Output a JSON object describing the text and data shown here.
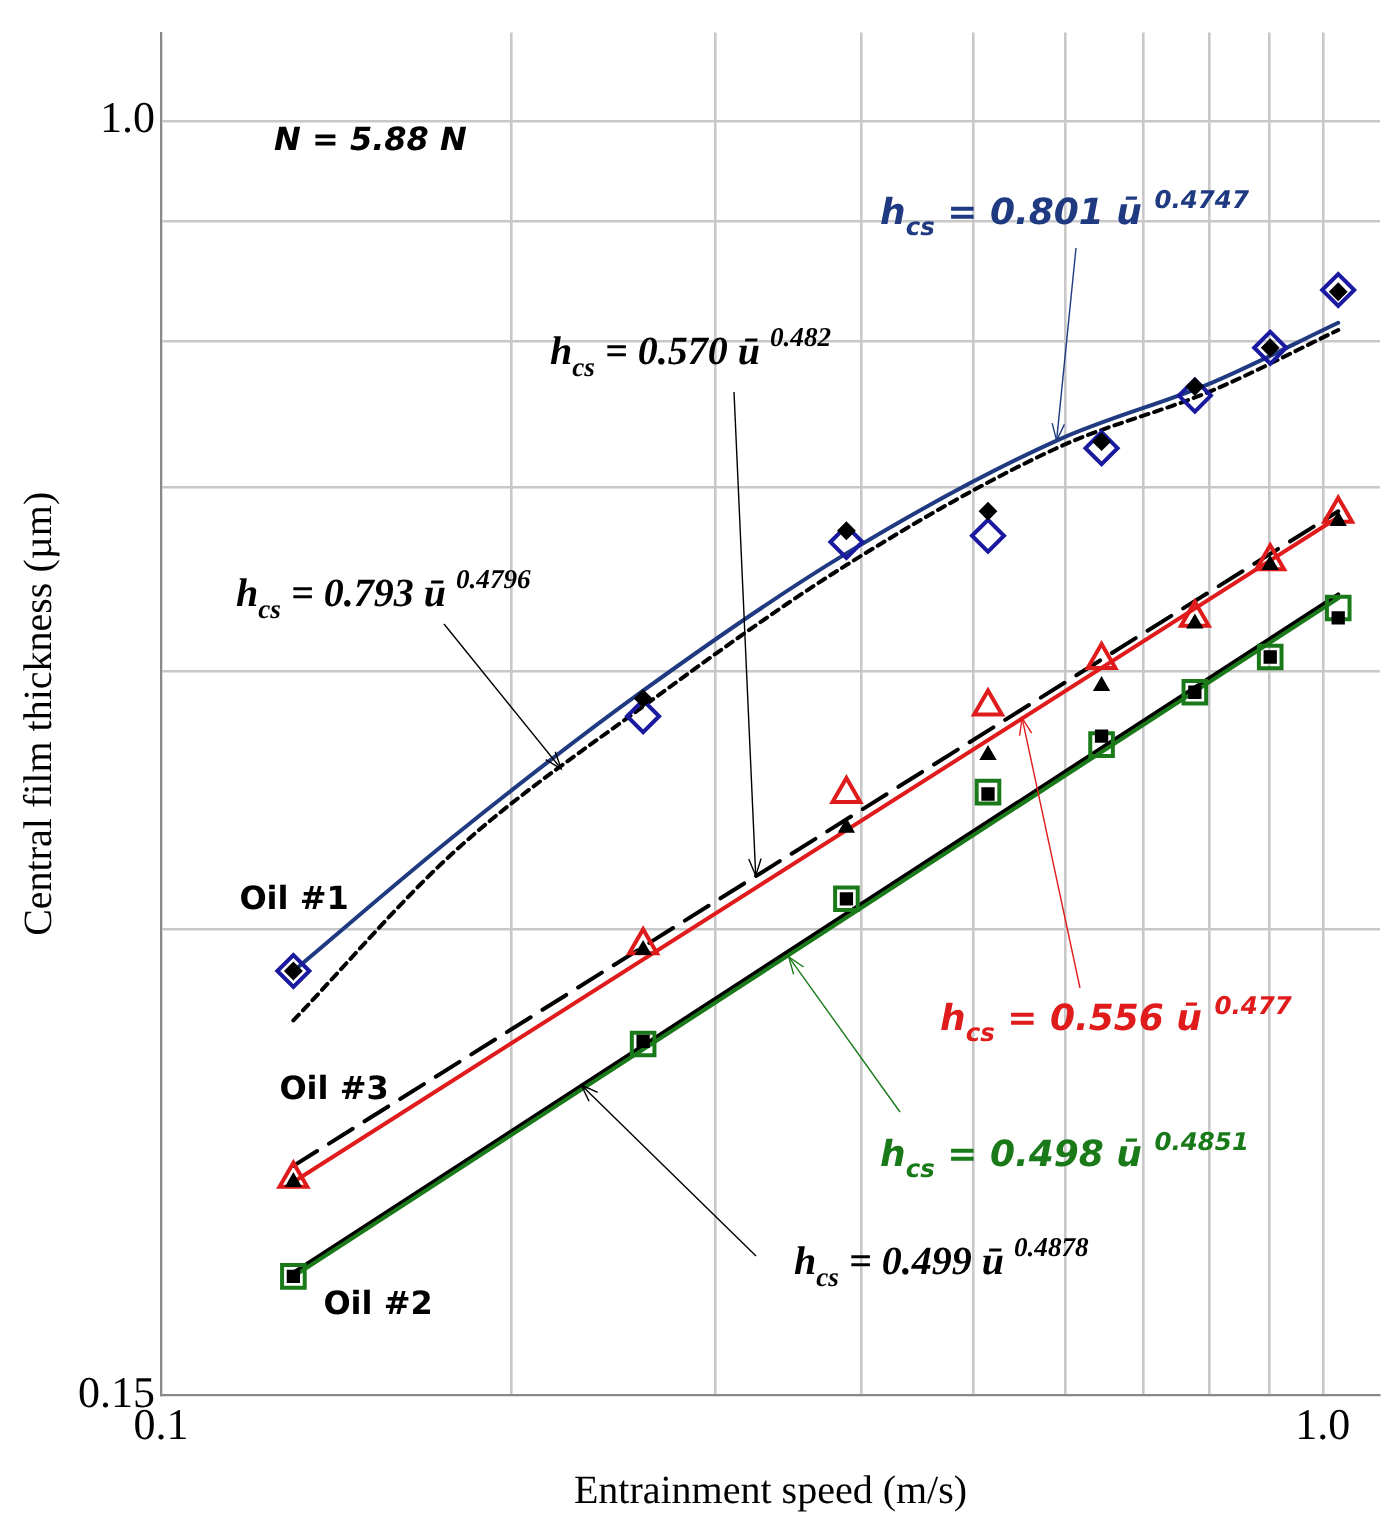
{
  "chart_data": {
    "type": "scatter",
    "xlabel": "Entrainment speed (m/s)",
    "ylabel": "Central film thickness (µm)",
    "log": "xy",
    "grid": true,
    "legend": false,
    "xlim": [
      0.1,
      1.12
    ],
    "xticks": [
      0.1,
      {
        "value": 0.2,
        "label": null
      },
      {
        "value": 0.3,
        "label": null
      },
      {
        "value": 0.4,
        "label": null
      },
      {
        "value": 0.5,
        "label": null
      },
      {
        "value": 0.6,
        "label": null
      },
      {
        "value": 0.7,
        "label": null
      },
      {
        "value": 0.8,
        "label": null
      },
      {
        "value": 0.9,
        "label": null
      },
      {
        "value": 1,
        "label": "1.0"
      }
    ],
    "ylim": [
      0.15,
      1.14
    ],
    "yticks": [
      0.15,
      {
        "value": 0.3,
        "label": null
      },
      {
        "value": 0.44,
        "label": null
      },
      {
        "value": 0.58,
        "label": null
      },
      {
        "value": 0.72,
        "label": null
      },
      {
        "value": 0.86,
        "label": null
      },
      {
        "value": 1,
        "label": "1.0"
      }
    ],
    "x": [
      0.13,
      0.26,
      0.389,
      0.515,
      0.645,
      0.776,
      0.901,
      1.031
    ],
    "series": [
      {
        "name": "Oil #1",
        "color": "#1a1aa0",
        "marker": "diamond",
        "values": [
          0.282,
          0.412,
          0.534,
          0.539,
          0.614,
          0.664,
          0.713,
          0.777
        ]
      },
      {
        "color": "#000000",
        "marker": "diamond",
        "values": [
          0.282,
          0.423,
          0.543,
          0.559,
          0.62,
          0.673,
          0.713,
          0.775
        ]
      },
      {
        "name": "Oil #3",
        "color": "#e01b1b",
        "marker": "triangle",
        "values": [
          0.207,
          0.293,
          0.367,
          0.418,
          0.448,
          0.477,
          0.519,
          0.557
        ]
      },
      {
        "color": "#000000",
        "marker": "triangle",
        "values": [
          0.206,
          0.291,
          0.349,
          0.389,
          0.431,
          0.473,
          0.516,
          0.551
        ]
      },
      {
        "name": "Oil #2",
        "color": "#1a7a1a",
        "marker": "square",
        "values": [
          0.179,
          0.253,
          0.314,
          0.368,
          0.395,
          0.427,
          0.45,
          0.484
        ]
      },
      {
        "color": "#000000",
        "marker": "square",
        "values": [
          0.179,
          0.254,
          0.314,
          0.367,
          0.4,
          0.427,
          0.45,
          0.477
        ]
      },
      {
        "type": "line",
        "color": "#1f3a80",
        "marker": "none",
        "line_style": "solid",
        "x": [
          0.13,
          0.179,
          0.26,
          0.389,
          0.59,
          0.803,
          1.031
        ],
        "values": [
          0.282,
          0.345,
          0.428,
          0.525,
          0.621,
          0.677,
          0.74
        ]
      },
      {
        "type": "line",
        "color": "#000000",
        "marker": "none",
        "line_style": "dotted",
        "x": [
          0.13,
          0.179,
          0.26,
          0.389,
          0.59,
          0.803,
          1.031
        ],
        "values": [
          0.262,
          0.337,
          0.418,
          0.516,
          0.614,
          0.669,
          0.732
        ]
      },
      {
        "type": "line",
        "color": "#e01b1b",
        "marker": "none",
        "line_style": "solid",
        "x": [
          0.13,
          1.031
        ],
        "values": [
          0.206,
          0.554
        ]
      },
      {
        "type": "line",
        "color": "#000000",
        "marker": "none",
        "line_style": "dashed",
        "x": [
          0.13,
          1.031
        ],
        "values": [
          0.211,
          0.559
        ]
      },
      {
        "type": "line",
        "color": "#1a7a1a",
        "marker": "none",
        "line_style": "solid",
        "x": [
          0.13,
          1.031
        ],
        "values": [
          0.179,
          0.491
        ]
      },
      {
        "type": "line",
        "color": "#000000",
        "marker": "none",
        "line_style": "solid",
        "x": [
          0.13,
          1.031
        ],
        "values": [
          0.18,
          0.494
        ]
      }
    ],
    "annotations": [
      "N = 5.88 N",
      {
        "text": "h$_{cs}$ = 0.801 ū $^{0.4747}$",
        "x": 0.59,
        "y": 0.621
      },
      {
        "text": "h$_{cs}$ = 0.570 ū $^{0.482}$",
        "x": 0.325,
        "y": 0.325
      },
      {
        "text": "h$_{cs}$ = 0.793 ū $^{0.4796}$",
        "x": 0.221,
        "y": 0.381
      },
      {
        "text": "h$_{cs}$ = 0.556 ū $^{0.477}$",
        "x": 0.551,
        "y": 0.411
      },
      {
        "text": "h$_{cs}$ = 0.498 ū $^{0.4851}$",
        "x": 0.347,
        "y": 0.288
      },
      {
        "text": "h$_{cs}$ = 0.499 ū $^{0.4878}$",
        "x": 0.23,
        "y": 0.238
      }
    ]
  }
}
